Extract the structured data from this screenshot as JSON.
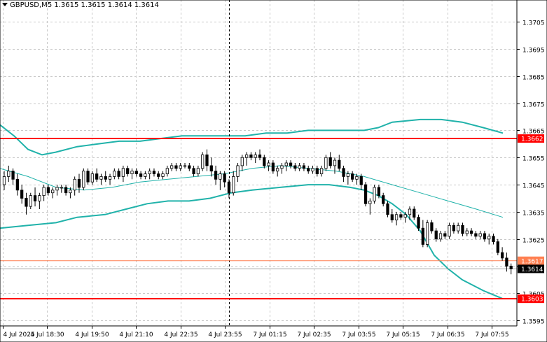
{
  "header": {
    "symbol": "GBPUSD,M5",
    "ohlc": "1.3615 1.3615 1.3614 1.3614"
  },
  "colors": {
    "background": "#ffffff",
    "grid": "#c8c8c8",
    "candle": "#000000",
    "bollinger": "#20b2aa",
    "level_line": "#ff0000",
    "bid_line": "#ff7f50",
    "level_tag": "#ff0000",
    "price_tag": "#000000"
  },
  "chart_data": {
    "type": "candlestick",
    "symbol": "GBPUSD",
    "timeframe": "M5",
    "ylim": [
      1.3593,
      1.3713
    ],
    "y_ticks": [
      "1.3705",
      "1.3695",
      "1.3685",
      "1.3675",
      "1.3665",
      "1.3655",
      "1.3645",
      "1.3635",
      "1.3625",
      "1.3615",
      "1.3605",
      "1.3595"
    ],
    "x_ticks": [
      "4 Jul 2025",
      "4 Jul 18:30",
      "4 Jul 19:50",
      "4 Jul 21:10",
      "4 Jul 22:35",
      "4 Jul 23:55",
      "7 Jul 01:15",
      "7 Jul 02:35",
      "7 Jul 03:55",
      "7 Jul 05:15",
      "7 Jul 06:35",
      "7 Jul 07:55"
    ],
    "levels": [
      {
        "label": "1.3662",
        "value": 1.3662,
        "style": "resistance"
      },
      {
        "label": "1.3603",
        "value": 1.3603,
        "style": "support"
      }
    ],
    "bid": {
      "label": "1.3617",
      "value": 1.3617
    },
    "last": {
      "label": "1.3614",
      "value": 1.3614
    },
    "period_separator_index": 51,
    "candles": [
      [
        1.3645,
        1.365,
        1.3643,
        1.3648
      ],
      [
        1.3648,
        1.3652,
        1.3646,
        1.365
      ],
      [
        1.365,
        1.3651,
        1.3645,
        1.3647
      ],
      [
        1.3647,
        1.3649,
        1.3641,
        1.3643
      ],
      [
        1.3643,
        1.3645,
        1.3638,
        1.364
      ],
      [
        1.364,
        1.3642,
        1.3634,
        1.3637
      ],
      [
        1.3637,
        1.3642,
        1.3636,
        1.3641
      ],
      [
        1.3641,
        1.3644,
        1.3637,
        1.3639
      ],
      [
        1.3639,
        1.3642,
        1.3636,
        1.3641
      ],
      [
        1.3641,
        1.3645,
        1.3639,
        1.3644
      ],
      [
        1.3644,
        1.3645,
        1.3641,
        1.3642
      ],
      [
        1.3642,
        1.3644,
        1.364,
        1.3643
      ],
      [
        1.3643,
        1.3645,
        1.3641,
        1.3644
      ],
      [
        1.3644,
        1.3645,
        1.3642,
        1.3644
      ],
      [
        1.3644,
        1.3645,
        1.3641,
        1.3642
      ],
      [
        1.3642,
        1.3644,
        1.364,
        1.3643
      ],
      [
        1.3643,
        1.3648,
        1.3641,
        1.3647
      ],
      [
        1.3647,
        1.3649,
        1.3642,
        1.3644
      ],
      [
        1.3644,
        1.3651,
        1.3643,
        1.365
      ],
      [
        1.365,
        1.3651,
        1.3645,
        1.3646
      ],
      [
        1.3646,
        1.365,
        1.3645,
        1.3649
      ],
      [
        1.3649,
        1.3651,
        1.3646,
        1.3647
      ],
      [
        1.3647,
        1.3649,
        1.3645,
        1.3648
      ],
      [
        1.3648,
        1.365,
        1.3646,
        1.3647
      ],
      [
        1.3647,
        1.3649,
        1.3645,
        1.3648
      ],
      [
        1.3648,
        1.3651,
        1.3647,
        1.365
      ],
      [
        1.365,
        1.3651,
        1.3647,
        1.3648
      ],
      [
        1.3648,
        1.3652,
        1.3646,
        1.3651
      ],
      [
        1.3651,
        1.3652,
        1.3648,
        1.3649
      ],
      [
        1.3649,
        1.3651,
        1.3647,
        1.365
      ],
      [
        1.365,
        1.3651,
        1.3648,
        1.3649
      ],
      [
        1.3649,
        1.365,
        1.3647,
        1.3648
      ],
      [
        1.3648,
        1.365,
        1.3647,
        1.3649
      ],
      [
        1.3649,
        1.3651,
        1.3647,
        1.365
      ],
      [
        1.365,
        1.3651,
        1.3648,
        1.3649
      ],
      [
        1.3649,
        1.365,
        1.3647,
        1.3648
      ],
      [
        1.3648,
        1.365,
        1.3647,
        1.3649
      ],
      [
        1.3649,
        1.3652,
        1.3648,
        1.3651
      ],
      [
        1.3651,
        1.3653,
        1.365,
        1.3652
      ],
      [
        1.3652,
        1.3653,
        1.365,
        1.3651
      ],
      [
        1.3651,
        1.3653,
        1.365,
        1.3652
      ],
      [
        1.3652,
        1.3653,
        1.3651,
        1.3652
      ],
      [
        1.3652,
        1.3653,
        1.365,
        1.3651
      ],
      [
        1.3651,
        1.3652,
        1.3648,
        1.3649
      ],
      [
        1.3649,
        1.3652,
        1.3648,
        1.3651
      ],
      [
        1.3651,
        1.3657,
        1.365,
        1.3656
      ],
      [
        1.3656,
        1.3658,
        1.365,
        1.3652
      ],
      [
        1.3652,
        1.3655,
        1.3648,
        1.365
      ],
      [
        1.365,
        1.3652,
        1.3645,
        1.3647
      ],
      [
        1.3647,
        1.365,
        1.3643,
        1.3649
      ],
      [
        1.3649,
        1.365,
        1.3644,
        1.3646
      ],
      [
        1.3646,
        1.3647,
        1.364,
        1.3642
      ],
      [
        1.3642,
        1.365,
        1.3641,
        1.3648
      ],
      [
        1.3648,
        1.3653,
        1.3646,
        1.3652
      ],
      [
        1.3652,
        1.3656,
        1.365,
        1.3655
      ],
      [
        1.3655,
        1.3657,
        1.3652,
        1.3656
      ],
      [
        1.3656,
        1.3657,
        1.3654,
        1.3655
      ],
      [
        1.3655,
        1.3657,
        1.3653,
        1.3656
      ],
      [
        1.3656,
        1.3658,
        1.3654,
        1.3655
      ],
      [
        1.3655,
        1.3656,
        1.3651,
        1.3652
      ],
      [
        1.3652,
        1.3654,
        1.365,
        1.3653
      ],
      [
        1.3653,
        1.3654,
        1.3649,
        1.365
      ],
      [
        1.365,
        1.3652,
        1.3648,
        1.3651
      ],
      [
        1.3651,
        1.3653,
        1.3649,
        1.3652
      ],
      [
        1.3652,
        1.3654,
        1.365,
        1.3653
      ],
      [
        1.3653,
        1.3654,
        1.3651,
        1.3652
      ],
      [
        1.3652,
        1.3653,
        1.365,
        1.3651
      ],
      [
        1.3651,
        1.3653,
        1.365,
        1.3652
      ],
      [
        1.3652,
        1.3653,
        1.365,
        1.3651
      ],
      [
        1.3651,
        1.3652,
        1.3649,
        1.365
      ],
      [
        1.365,
        1.3652,
        1.3649,
        1.3651
      ],
      [
        1.3651,
        1.3652,
        1.3648,
        1.3649
      ],
      [
        1.3649,
        1.3652,
        1.3648,
        1.3651
      ],
      [
        1.3651,
        1.3656,
        1.365,
        1.3655
      ],
      [
        1.3655,
        1.3657,
        1.3651,
        1.3652
      ],
      [
        1.3652,
        1.3655,
        1.3649,
        1.3654
      ],
      [
        1.3654,
        1.3656,
        1.365,
        1.3651
      ],
      [
        1.3651,
        1.3652,
        1.3646,
        1.3648
      ],
      [
        1.3648,
        1.365,
        1.3645,
        1.3649
      ],
      [
        1.3649,
        1.365,
        1.3646,
        1.3647
      ],
      [
        1.3647,
        1.3649,
        1.3645,
        1.3648
      ],
      [
        1.3648,
        1.3649,
        1.3643,
        1.3645
      ],
      [
        1.3645,
        1.3646,
        1.3637,
        1.3638
      ],
      [
        1.3638,
        1.364,
        1.3634,
        1.3639
      ],
      [
        1.3639,
        1.3645,
        1.3638,
        1.3644
      ],
      [
        1.3644,
        1.3645,
        1.364,
        1.3641
      ],
      [
        1.3641,
        1.3642,
        1.3637,
        1.3638
      ],
      [
        1.3638,
        1.3639,
        1.3633,
        1.3634
      ],
      [
        1.3634,
        1.3636,
        1.3631,
        1.3632
      ],
      [
        1.3632,
        1.3635,
        1.363,
        1.3634
      ],
      [
        1.3634,
        1.3635,
        1.3632,
        1.3633
      ],
      [
        1.3633,
        1.3635,
        1.3631,
        1.3634
      ],
      [
        1.3634,
        1.3637,
        1.3632,
        1.3636
      ],
      [
        1.3636,
        1.3637,
        1.3632,
        1.3633
      ],
      [
        1.3633,
        1.3634,
        1.3628,
        1.3629
      ],
      [
        1.3629,
        1.3632,
        1.3622,
        1.3623
      ],
      [
        1.3623,
        1.3632,
        1.3622,
        1.3631
      ],
      [
        1.3631,
        1.3632,
        1.3627,
        1.3628
      ],
      [
        1.3628,
        1.3629,
        1.3624,
        1.3625
      ],
      [
        1.3625,
        1.3628,
        1.3624,
        1.3627
      ],
      [
        1.3627,
        1.3628,
        1.3625,
        1.3626
      ],
      [
        1.3626,
        1.3631,
        1.3625,
        1.363
      ],
      [
        1.363,
        1.3631,
        1.3627,
        1.3628
      ],
      [
        1.3628,
        1.3631,
        1.3627,
        1.363
      ],
      [
        1.363,
        1.3631,
        1.3626,
        1.3627
      ],
      [
        1.3627,
        1.3629,
        1.3626,
        1.3628
      ],
      [
        1.3628,
        1.3629,
        1.3626,
        1.3627
      ],
      [
        1.3627,
        1.3628,
        1.3625,
        1.3626
      ],
      [
        1.3626,
        1.3628,
        1.3625,
        1.3627
      ],
      [
        1.3627,
        1.3628,
        1.3624,
        1.3625
      ],
      [
        1.3625,
        1.3627,
        1.3623,
        1.3626
      ],
      [
        1.3626,
        1.3627,
        1.3623,
        1.3624
      ],
      [
        1.3624,
        1.3625,
        1.3619,
        1.362
      ],
      [
        1.362,
        1.3622,
        1.3617,
        1.3618
      ],
      [
        1.3618,
        1.362,
        1.3613,
        1.3615
      ],
      [
        1.3615,
        1.3616,
        1.3612,
        1.3614
      ]
    ],
    "bollinger_upper": [
      [
        0,
        1.3667
      ],
      [
        20,
        1.3663
      ],
      [
        40,
        1.3658
      ],
      [
        60,
        1.3656
      ],
      [
        80,
        1.3657
      ],
      [
        110,
        1.3659
      ],
      [
        140,
        1.366
      ],
      [
        170,
        1.3661
      ],
      [
        200,
        1.3661
      ],
      [
        230,
        1.3662
      ],
      [
        260,
        1.3663
      ],
      [
        290,
        1.3663
      ],
      [
        320,
        1.3663
      ],
      [
        350,
        1.3663
      ],
      [
        380,
        1.3664
      ],
      [
        410,
        1.3664
      ],
      [
        440,
        1.3665
      ],
      [
        470,
        1.3665
      ],
      [
        500,
        1.3665
      ],
      [
        520,
        1.3665
      ],
      [
        540,
        1.3666
      ],
      [
        560,
        1.3668
      ],
      [
        600,
        1.3669
      ],
      [
        630,
        1.3669
      ],
      [
        660,
        1.3668
      ],
      [
        690,
        1.3666
      ],
      [
        718,
        1.3664
      ]
    ],
    "bollinger_middle": [
      [
        0,
        1.3651
      ],
      [
        40,
        1.3648
      ],
      [
        80,
        1.3644
      ],
      [
        120,
        1.3643
      ],
      [
        160,
        1.3644
      ],
      [
        200,
        1.3646
      ],
      [
        240,
        1.3647
      ],
      [
        280,
        1.3648
      ],
      [
        320,
        1.3649
      ],
      [
        360,
        1.3651
      ],
      [
        400,
        1.3652
      ],
      [
        440,
        1.3651
      ],
      [
        480,
        1.365
      ],
      [
        520,
        1.3648
      ],
      [
        560,
        1.3645
      ],
      [
        600,
        1.3642
      ],
      [
        640,
        1.3639
      ],
      [
        680,
        1.3636
      ],
      [
        718,
        1.3633
      ]
    ],
    "bollinger_lower": [
      [
        0,
        1.3629
      ],
      [
        40,
        1.363
      ],
      [
        80,
        1.3631
      ],
      [
        110,
        1.3633
      ],
      [
        150,
        1.3634
      ],
      [
        180,
        1.3636
      ],
      [
        210,
        1.3638
      ],
      [
        240,
        1.3639
      ],
      [
        270,
        1.3639
      ],
      [
        300,
        1.364
      ],
      [
        330,
        1.3642
      ],
      [
        360,
        1.3643
      ],
      [
        400,
        1.3644
      ],
      [
        440,
        1.3645
      ],
      [
        470,
        1.3645
      ],
      [
        500,
        1.3644
      ],
      [
        520,
        1.3643
      ],
      [
        540,
        1.3641
      ],
      [
        560,
        1.3638
      ],
      [
        580,
        1.3634
      ],
      [
        600,
        1.3628
      ],
      [
        620,
        1.3619
      ],
      [
        640,
        1.3614
      ],
      [
        660,
        1.361
      ],
      [
        690,
        1.3606
      ],
      [
        718,
        1.3603
      ]
    ]
  }
}
